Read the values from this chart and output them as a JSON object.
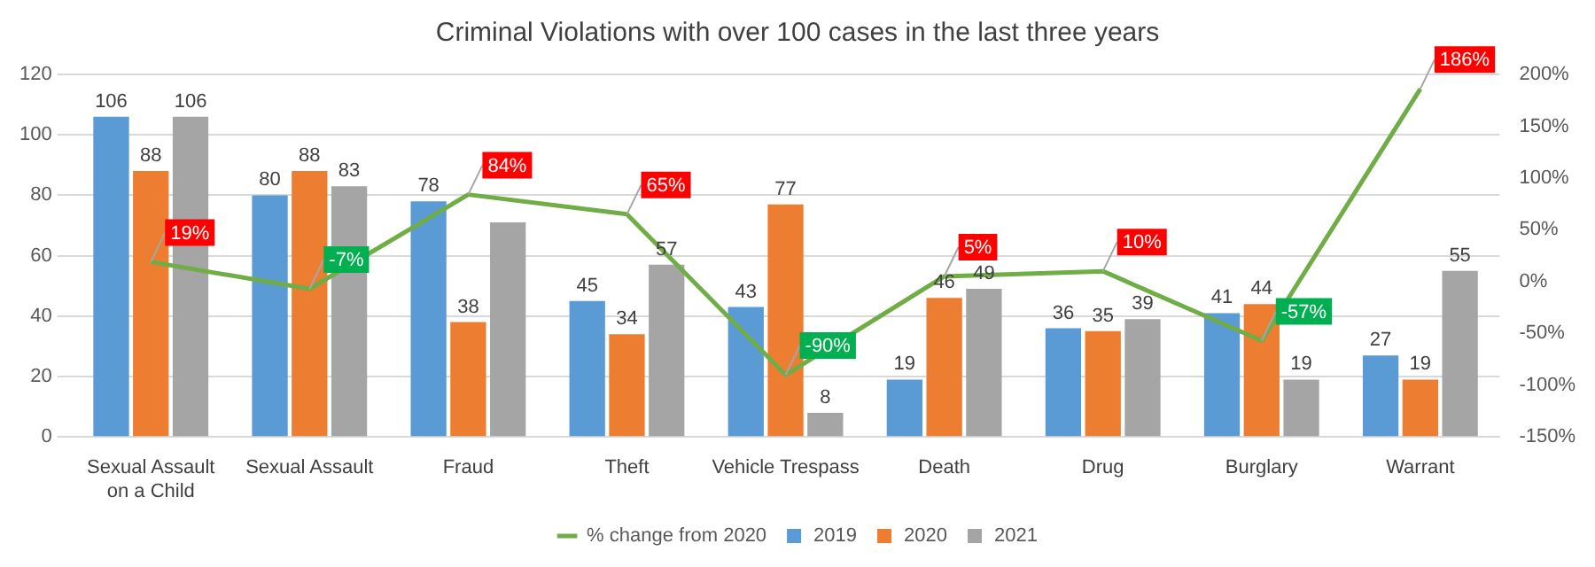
{
  "chart_data": {
    "type": "bar",
    "title": "Criminal Violations with over 100 cases in the last three years",
    "categories": [
      "Sexual Assault on a Child",
      "Sexual Assault",
      "Fraud",
      "Theft",
      "Vehicle Trespass",
      "Death",
      "Drug",
      "Burglary",
      "Warrant"
    ],
    "series": [
      {
        "name": "2019",
        "color": "#5b9bd5",
        "values": [
          106,
          80,
          78,
          45,
          43,
          19,
          36,
          41,
          27
        ],
        "value_labels": [
          "106",
          "80",
          "78",
          "45",
          "43",
          "19",
          "36",
          "41",
          "27"
        ]
      },
      {
        "name": "2020",
        "color": "#ed7d31",
        "values": [
          88,
          88,
          38,
          34,
          77,
          46,
          35,
          44,
          19
        ],
        "value_labels": [
          "88",
          "88",
          "38",
          "34",
          "77",
          "46",
          "35",
          "44",
          "19"
        ]
      },
      {
        "name": "2021",
        "color": "#a5a5a5",
        "values": [
          106,
          83,
          71,
          57,
          8,
          49,
          39,
          19,
          55
        ],
        "value_labels": [
          "106",
          "83",
          null,
          "57",
          "8",
          "49",
          "39",
          "19",
          "55"
        ]
      },
      {
        "name": "% change from 2020",
        "type": "line",
        "axis": "y2",
        "color": "#70ad47",
        "values": [
          19,
          -7,
          84,
          65,
          -90,
          5,
          10,
          -57,
          186
        ],
        "value_labels": [
          "19%",
          "-7%",
          "84%",
          "65%",
          "-90%",
          "5%",
          "10%",
          "-57%",
          "186%"
        ]
      }
    ],
    "ylim": [
      0,
      120
    ],
    "yticks": [
      0,
      20,
      40,
      60,
      80,
      100,
      120
    ],
    "y2lim": [
      -150,
      200
    ],
    "y2ticks": [
      {
        "value": -150,
        "label": "-150%"
      },
      {
        "value": -100,
        "label": "-100%"
      },
      {
        "value": -50,
        "label": "-50%"
      },
      {
        "value": 0,
        "label": "0%"
      },
      {
        "value": 50,
        "label": "50%"
      },
      {
        "value": 100,
        "label": "100%"
      },
      {
        "value": 150,
        "label": "150%"
      },
      {
        "value": 200,
        "label": "200%"
      }
    ],
    "grid": "y",
    "legend": "bottom",
    "marker": "none",
    "line_style": "solid"
  }
}
